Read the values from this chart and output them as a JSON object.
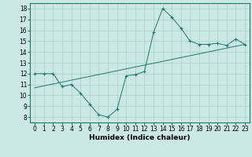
{
  "x": [
    0,
    1,
    2,
    3,
    4,
    5,
    6,
    7,
    8,
    9,
    10,
    11,
    12,
    13,
    14,
    15,
    16,
    17,
    18,
    19,
    20,
    21,
    22,
    23
  ],
  "y_jagged": [
    12,
    12,
    12,
    10.8,
    11,
    10.2,
    9.2,
    8.2,
    8.0,
    8.7,
    11.8,
    11.9,
    12.2,
    15.8,
    18.0,
    17.2,
    16.2,
    15.0,
    14.7,
    14.7,
    14.8,
    14.6,
    15.2,
    14.7
  ],
  "trend_x": [
    0,
    23
  ],
  "trend_y": [
    10.7,
    14.7
  ],
  "line_color": "#1a7a6e",
  "bg_color": "#cce8e4",
  "grid_color": "#aacfcc",
  "xlabel": "Humidex (Indice chaleur)",
  "ylim": [
    7.5,
    18.5
  ],
  "xlim": [
    -0.5,
    23.5
  ],
  "yticks": [
    8,
    9,
    10,
    11,
    12,
    13,
    14,
    15,
    16,
    17,
    18
  ],
  "xticks": [
    0,
    1,
    2,
    3,
    4,
    5,
    6,
    7,
    8,
    9,
    10,
    11,
    12,
    13,
    14,
    15,
    16,
    17,
    18,
    19,
    20,
    21,
    22,
    23
  ],
  "tick_fontsize": 5.5,
  "xlabel_fontsize": 6.5
}
